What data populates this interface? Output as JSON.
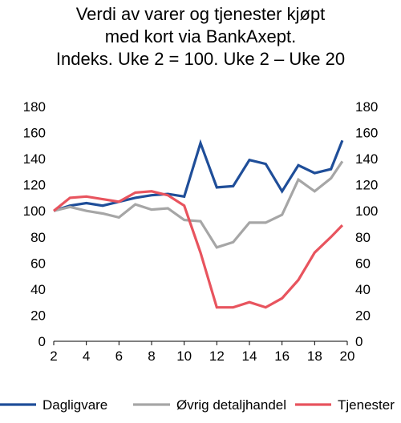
{
  "chart_data": {
    "type": "line",
    "title_lines": [
      "Verdi av varer og tjenester kjøpt",
      "med kort via BankAxept.",
      "Indeks. Uke 2 = 100. Uke 2 – Uke 20"
    ],
    "x": [
      2,
      3,
      4,
      5,
      6,
      7,
      8,
      9,
      10,
      11,
      12,
      13,
      14,
      15,
      16,
      17,
      18,
      19,
      19.7
    ],
    "xlim": [
      2,
      20
    ],
    "xticks": [
      2,
      4,
      6,
      8,
      10,
      12,
      14,
      16,
      18,
      20
    ],
    "ylim": [
      0,
      180
    ],
    "yticks": [
      0,
      20,
      40,
      60,
      80,
      100,
      120,
      140,
      160,
      180
    ],
    "grid": false,
    "legend_position": "bottom",
    "series": [
      {
        "name": "Dagligvare",
        "color": "#1f4e99",
        "values": [
          100,
          104,
          106,
          104,
          107,
          110,
          112,
          113,
          111,
          152,
          118,
          119,
          139,
          136,
          115,
          135,
          129,
          132,
          154
        ]
      },
      {
        "name": "Øvrig detaljhandel",
        "color": "#a6a6a6",
        "values": [
          100,
          103,
          100,
          98,
          95,
          105,
          101,
          102,
          93,
          92,
          72,
          76,
          91,
          91,
          97,
          124,
          115,
          125,
          138
        ]
      },
      {
        "name": "Tjenester",
        "color": "#e8545e",
        "values": [
          100,
          110,
          111,
          109,
          107,
          114,
          115,
          112,
          104,
          68,
          26,
          26,
          30,
          26,
          33,
          47,
          68,
          80,
          89
        ]
      }
    ]
  }
}
